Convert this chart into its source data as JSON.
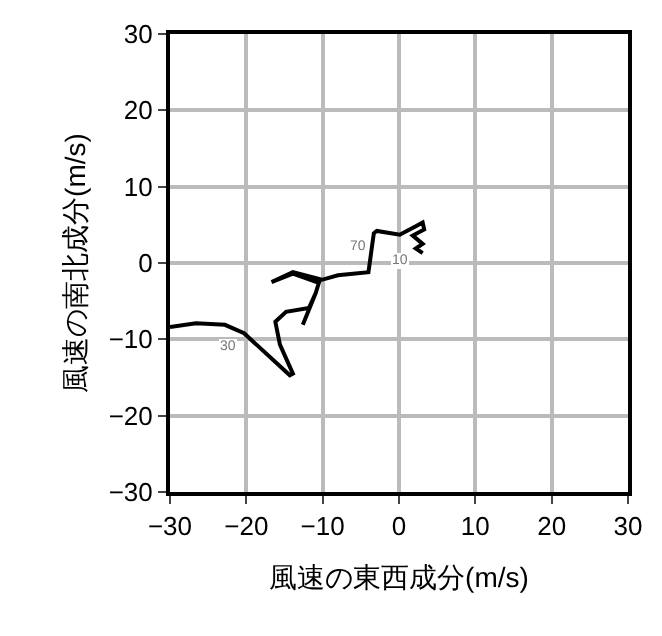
{
  "chart_data": {
    "type": "line",
    "xlabel": "風速の東西成分(m/s)",
    "ylabel": "風速の南北成分(m/s)",
    "xlim": [
      -30,
      30
    ],
    "ylim": [
      -30,
      30
    ],
    "xticks": [
      -30,
      -20,
      -10,
      0,
      10,
      20,
      30
    ],
    "yticks": [
      -30,
      -20,
      -10,
      0,
      10,
      20,
      30
    ],
    "grid": true,
    "marker": "none",
    "line_style": "solid",
    "series": [
      {
        "color": "#000000",
        "x": [
          -30,
          -26.6,
          -22.8,
          -20.3,
          -14.3,
          -13.9,
          -15.6,
          -16.2,
          -14.8,
          -11.8,
          -10.9,
          -12.6,
          -10.9,
          -10.5,
          -13.9,
          -16.7,
          -13.9,
          -10.1,
          -8.0,
          -4.0,
          -3.3,
          -2.9,
          0.1,
          2.2,
          3.1,
          3.3,
          1.8,
          3.1,
          2.2,
          3.1
        ],
        "values": [
          -8.4,
          -7.9,
          -8.1,
          -9.2,
          -14.7,
          -14.5,
          -10.7,
          -7.7,
          -6.4,
          -5.9,
          -3.9,
          -8.1,
          -3.9,
          -2.6,
          -1.4,
          -2.5,
          -1.2,
          -2.2,
          -1.6,
          -1.2,
          3.9,
          4.2,
          3.7,
          4.8,
          5.3,
          4.4,
          3.6,
          2.5,
          1.9,
          1.3
        ]
      }
    ],
    "annotations": [
      {
        "text": "10",
        "x": 2.2,
        "y": 1.9
      },
      {
        "text": "70",
        "x": -3.3,
        "y": 3.9
      },
      {
        "text": "30",
        "x": -20.3,
        "y": -9.2
      }
    ]
  }
}
